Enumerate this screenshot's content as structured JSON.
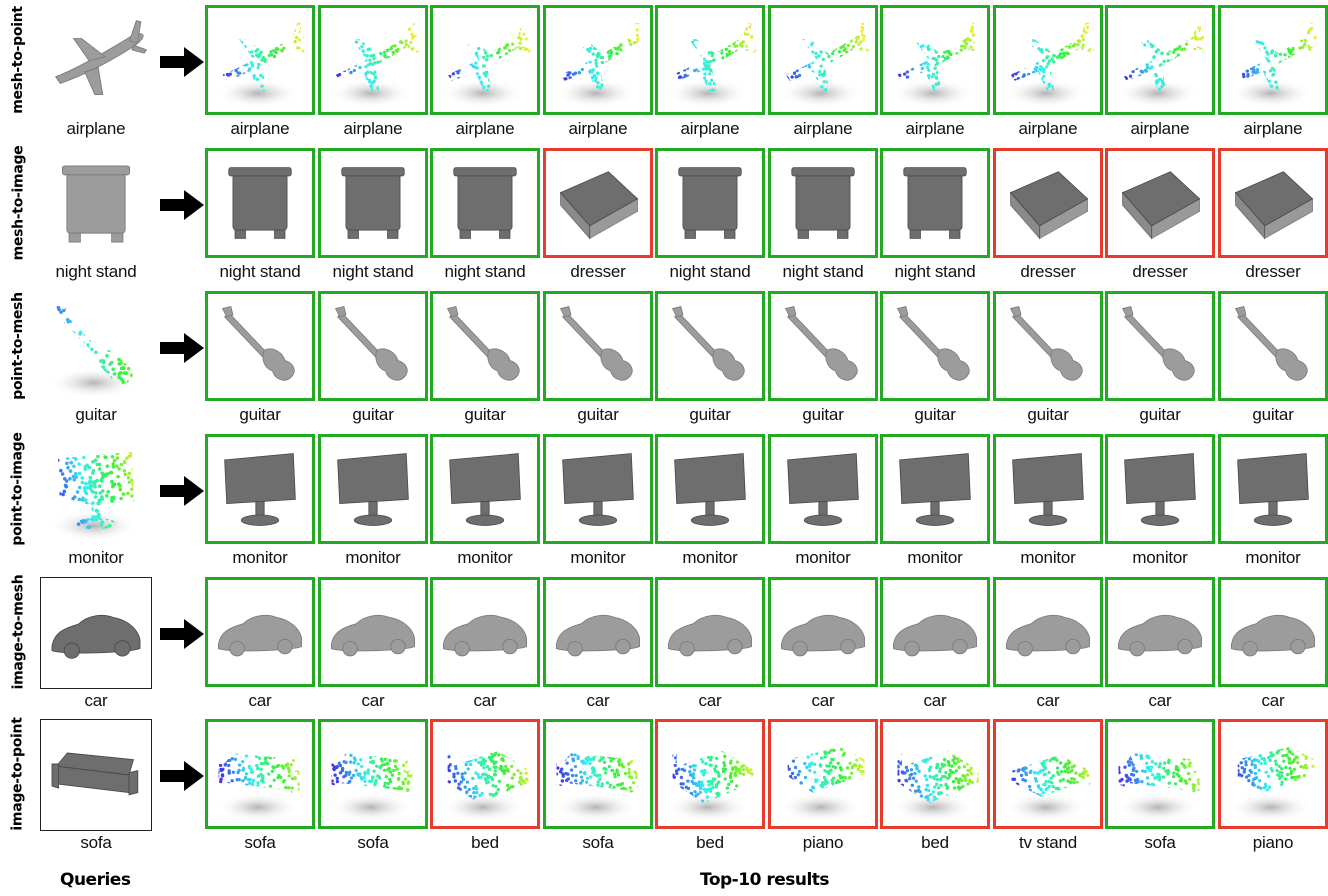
{
  "colors": {
    "correct_border": "#22aa22",
    "wrong_border": "#e83b2b"
  },
  "footer": {
    "queries_label": "Queries",
    "results_label": "Top-10 results"
  },
  "rows": [
    {
      "task": "mesh-to-point",
      "query": {
        "label": "airplane",
        "modality": "mesh",
        "object": "airplane"
      },
      "results_modality": "point",
      "results": [
        {
          "label": "airplane",
          "correct": true
        },
        {
          "label": "airplane",
          "correct": true
        },
        {
          "label": "airplane",
          "correct": true
        },
        {
          "label": "airplane",
          "correct": true
        },
        {
          "label": "airplane",
          "correct": true
        },
        {
          "label": "airplane",
          "correct": true
        },
        {
          "label": "airplane",
          "correct": true
        },
        {
          "label": "airplane",
          "correct": true
        },
        {
          "label": "airplane",
          "correct": true
        },
        {
          "label": "airplane",
          "correct": true
        }
      ]
    },
    {
      "task": "mesh-to-image",
      "query": {
        "label": "night stand",
        "modality": "mesh",
        "object": "night stand"
      },
      "results_modality": "image",
      "results": [
        {
          "label": "night stand",
          "correct": true
        },
        {
          "label": "night stand",
          "correct": true
        },
        {
          "label": "night stand",
          "correct": true
        },
        {
          "label": "dresser",
          "correct": false
        },
        {
          "label": "night stand",
          "correct": true
        },
        {
          "label": "night stand",
          "correct": true
        },
        {
          "label": "night stand",
          "correct": true
        },
        {
          "label": "dresser",
          "correct": false
        },
        {
          "label": "dresser",
          "correct": false
        },
        {
          "label": "dresser",
          "correct": false
        }
      ]
    },
    {
      "task": "point-to-mesh",
      "query": {
        "label": "guitar",
        "modality": "point",
        "object": "guitar"
      },
      "results_modality": "mesh",
      "results": [
        {
          "label": "guitar",
          "correct": true
        },
        {
          "label": "guitar",
          "correct": true
        },
        {
          "label": "guitar",
          "correct": true
        },
        {
          "label": "guitar",
          "correct": true
        },
        {
          "label": "guitar",
          "correct": true
        },
        {
          "label": "guitar",
          "correct": true
        },
        {
          "label": "guitar",
          "correct": true
        },
        {
          "label": "guitar",
          "correct": true
        },
        {
          "label": "guitar",
          "correct": true
        },
        {
          "label": "guitar",
          "correct": true
        }
      ]
    },
    {
      "task": "point-to-image",
      "query": {
        "label": "monitor",
        "modality": "point",
        "object": "monitor"
      },
      "results_modality": "image",
      "results": [
        {
          "label": "monitor",
          "correct": true
        },
        {
          "label": "monitor",
          "correct": true
        },
        {
          "label": "monitor",
          "correct": true
        },
        {
          "label": "monitor",
          "correct": true
        },
        {
          "label": "monitor",
          "correct": true
        },
        {
          "label": "monitor",
          "correct": true
        },
        {
          "label": "monitor",
          "correct": true
        },
        {
          "label": "monitor",
          "correct": true
        },
        {
          "label": "monitor",
          "correct": true
        },
        {
          "label": "monitor",
          "correct": true
        }
      ]
    },
    {
      "task": "image-to-mesh",
      "query": {
        "label": "car",
        "modality": "image",
        "object": "car"
      },
      "results_modality": "mesh",
      "results": [
        {
          "label": "car",
          "correct": true
        },
        {
          "label": "car",
          "correct": true
        },
        {
          "label": "car",
          "correct": true
        },
        {
          "label": "car",
          "correct": true
        },
        {
          "label": "car",
          "correct": true
        },
        {
          "label": "car",
          "correct": true
        },
        {
          "label": "car",
          "correct": true
        },
        {
          "label": "car",
          "correct": true
        },
        {
          "label": "car",
          "correct": true
        },
        {
          "label": "car",
          "correct": true
        }
      ]
    },
    {
      "task": "image-to-point",
      "query": {
        "label": "sofa",
        "modality": "image",
        "object": "sofa"
      },
      "results_modality": "point",
      "results": [
        {
          "label": "sofa",
          "correct": true
        },
        {
          "label": "sofa",
          "correct": true
        },
        {
          "label": "bed",
          "correct": false
        },
        {
          "label": "sofa",
          "correct": true
        },
        {
          "label": "bed",
          "correct": false
        },
        {
          "label": "piano",
          "correct": false
        },
        {
          "label": "bed",
          "correct": false
        },
        {
          "label": "tv stand",
          "correct": false
        },
        {
          "label": "sofa",
          "correct": true
        },
        {
          "label": "piano",
          "correct": false
        }
      ]
    }
  ]
}
